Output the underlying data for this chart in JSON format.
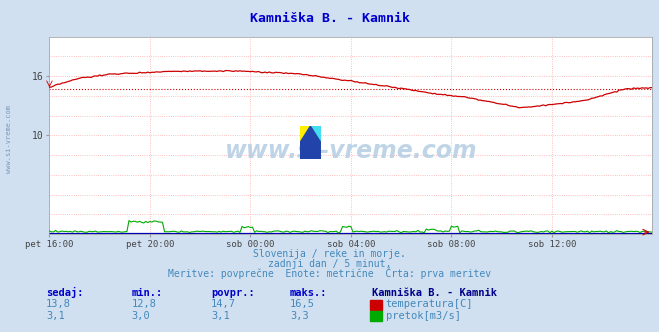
{
  "title": "Kamniška B. - Kamnik",
  "title_color": "#0000cc",
  "bg_color": "#d0e0f0",
  "plot_bg_color": "#ffffff",
  "grid_color": "#ffaaaa",
  "x_tick_labels": [
    "pet 16:00",
    "pet 20:00",
    "sob 00:00",
    "sob 04:00",
    "sob 08:00",
    "sob 12:00"
  ],
  "x_tick_positions": [
    0,
    48,
    96,
    144,
    192,
    240
  ],
  "n_points": 289,
  "temp_min": 12.8,
  "temp_max": 16.5,
  "temp_avg": 14.7,
  "temp_current": 13.8,
  "flow_min": 3.0,
  "flow_max": 3.3,
  "flow_avg": 3.1,
  "flow_current": 3.1,
  "temp_color": "#cc0000",
  "flow_color": "#00aa00",
  "height_color": "#0000bb",
  "avg_line_color": "#cc0000",
  "subtitle1": "Slovenija / reke in morje.",
  "subtitle2": "zadnji dan / 5 minut.",
  "subtitle3": "Meritve: povprečne  Enote: metrične  Črta: prva meritev",
  "subtitle_color": "#4488bb",
  "legend_title": "Kamniška B. - Kamnik",
  "legend_title_color": "#000080",
  "legend_color": "#0000cc",
  "table_header": [
    "sedaj:",
    "min.:",
    "povpr.:",
    "maks.:"
  ],
  "table_row1": [
    "13,8",
    "12,8",
    "14,7",
    "16,5"
  ],
  "table_row2": [
    "3,1",
    "3,0",
    "3,1",
    "3,3"
  ],
  "table_color": "#4488bb",
  "ymin": 0,
  "ymax": 20,
  "watermark": "www.si-vreme.com",
  "watermark_color": "#aabbcc",
  "left_label_color": "#7799bb"
}
